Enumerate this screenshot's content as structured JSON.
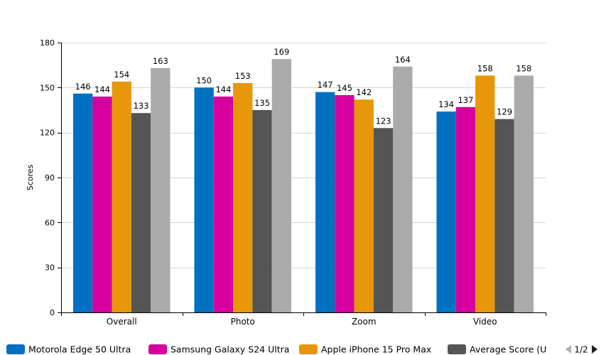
{
  "chart_data": {
    "type": "bar",
    "title": "",
    "xlabel": "",
    "ylabel": "Scores",
    "ylim": [
      0,
      180
    ],
    "yticks": [
      0,
      30,
      60,
      90,
      120,
      150,
      180
    ],
    "grid": true,
    "legend_position": "bottom",
    "categories": [
      "Overall",
      "Photo",
      "Zoom",
      "Video"
    ],
    "series": [
      {
        "name": "Motorola Edge 50 Ultra",
        "color": "#0070c0",
        "values": [
          146,
          150,
          147,
          134
        ]
      },
      {
        "name": "Samsung Galaxy S24 Ultra",
        "color": "#d5009e",
        "values": [
          144,
          144,
          145,
          137
        ]
      },
      {
        "name": "Apple iPhone 15 Pro Max",
        "color": "#e8960a",
        "values": [
          154,
          153,
          142,
          158
        ]
      },
      {
        "name": "Average Score (U",
        "color": "#555555",
        "values": [
          133,
          135,
          123,
          129
        ]
      },
      {
        "color": "#aaaaaa",
        "values": [
          163,
          169,
          164,
          158
        ]
      }
    ],
    "legend_pager": "1/2"
  }
}
